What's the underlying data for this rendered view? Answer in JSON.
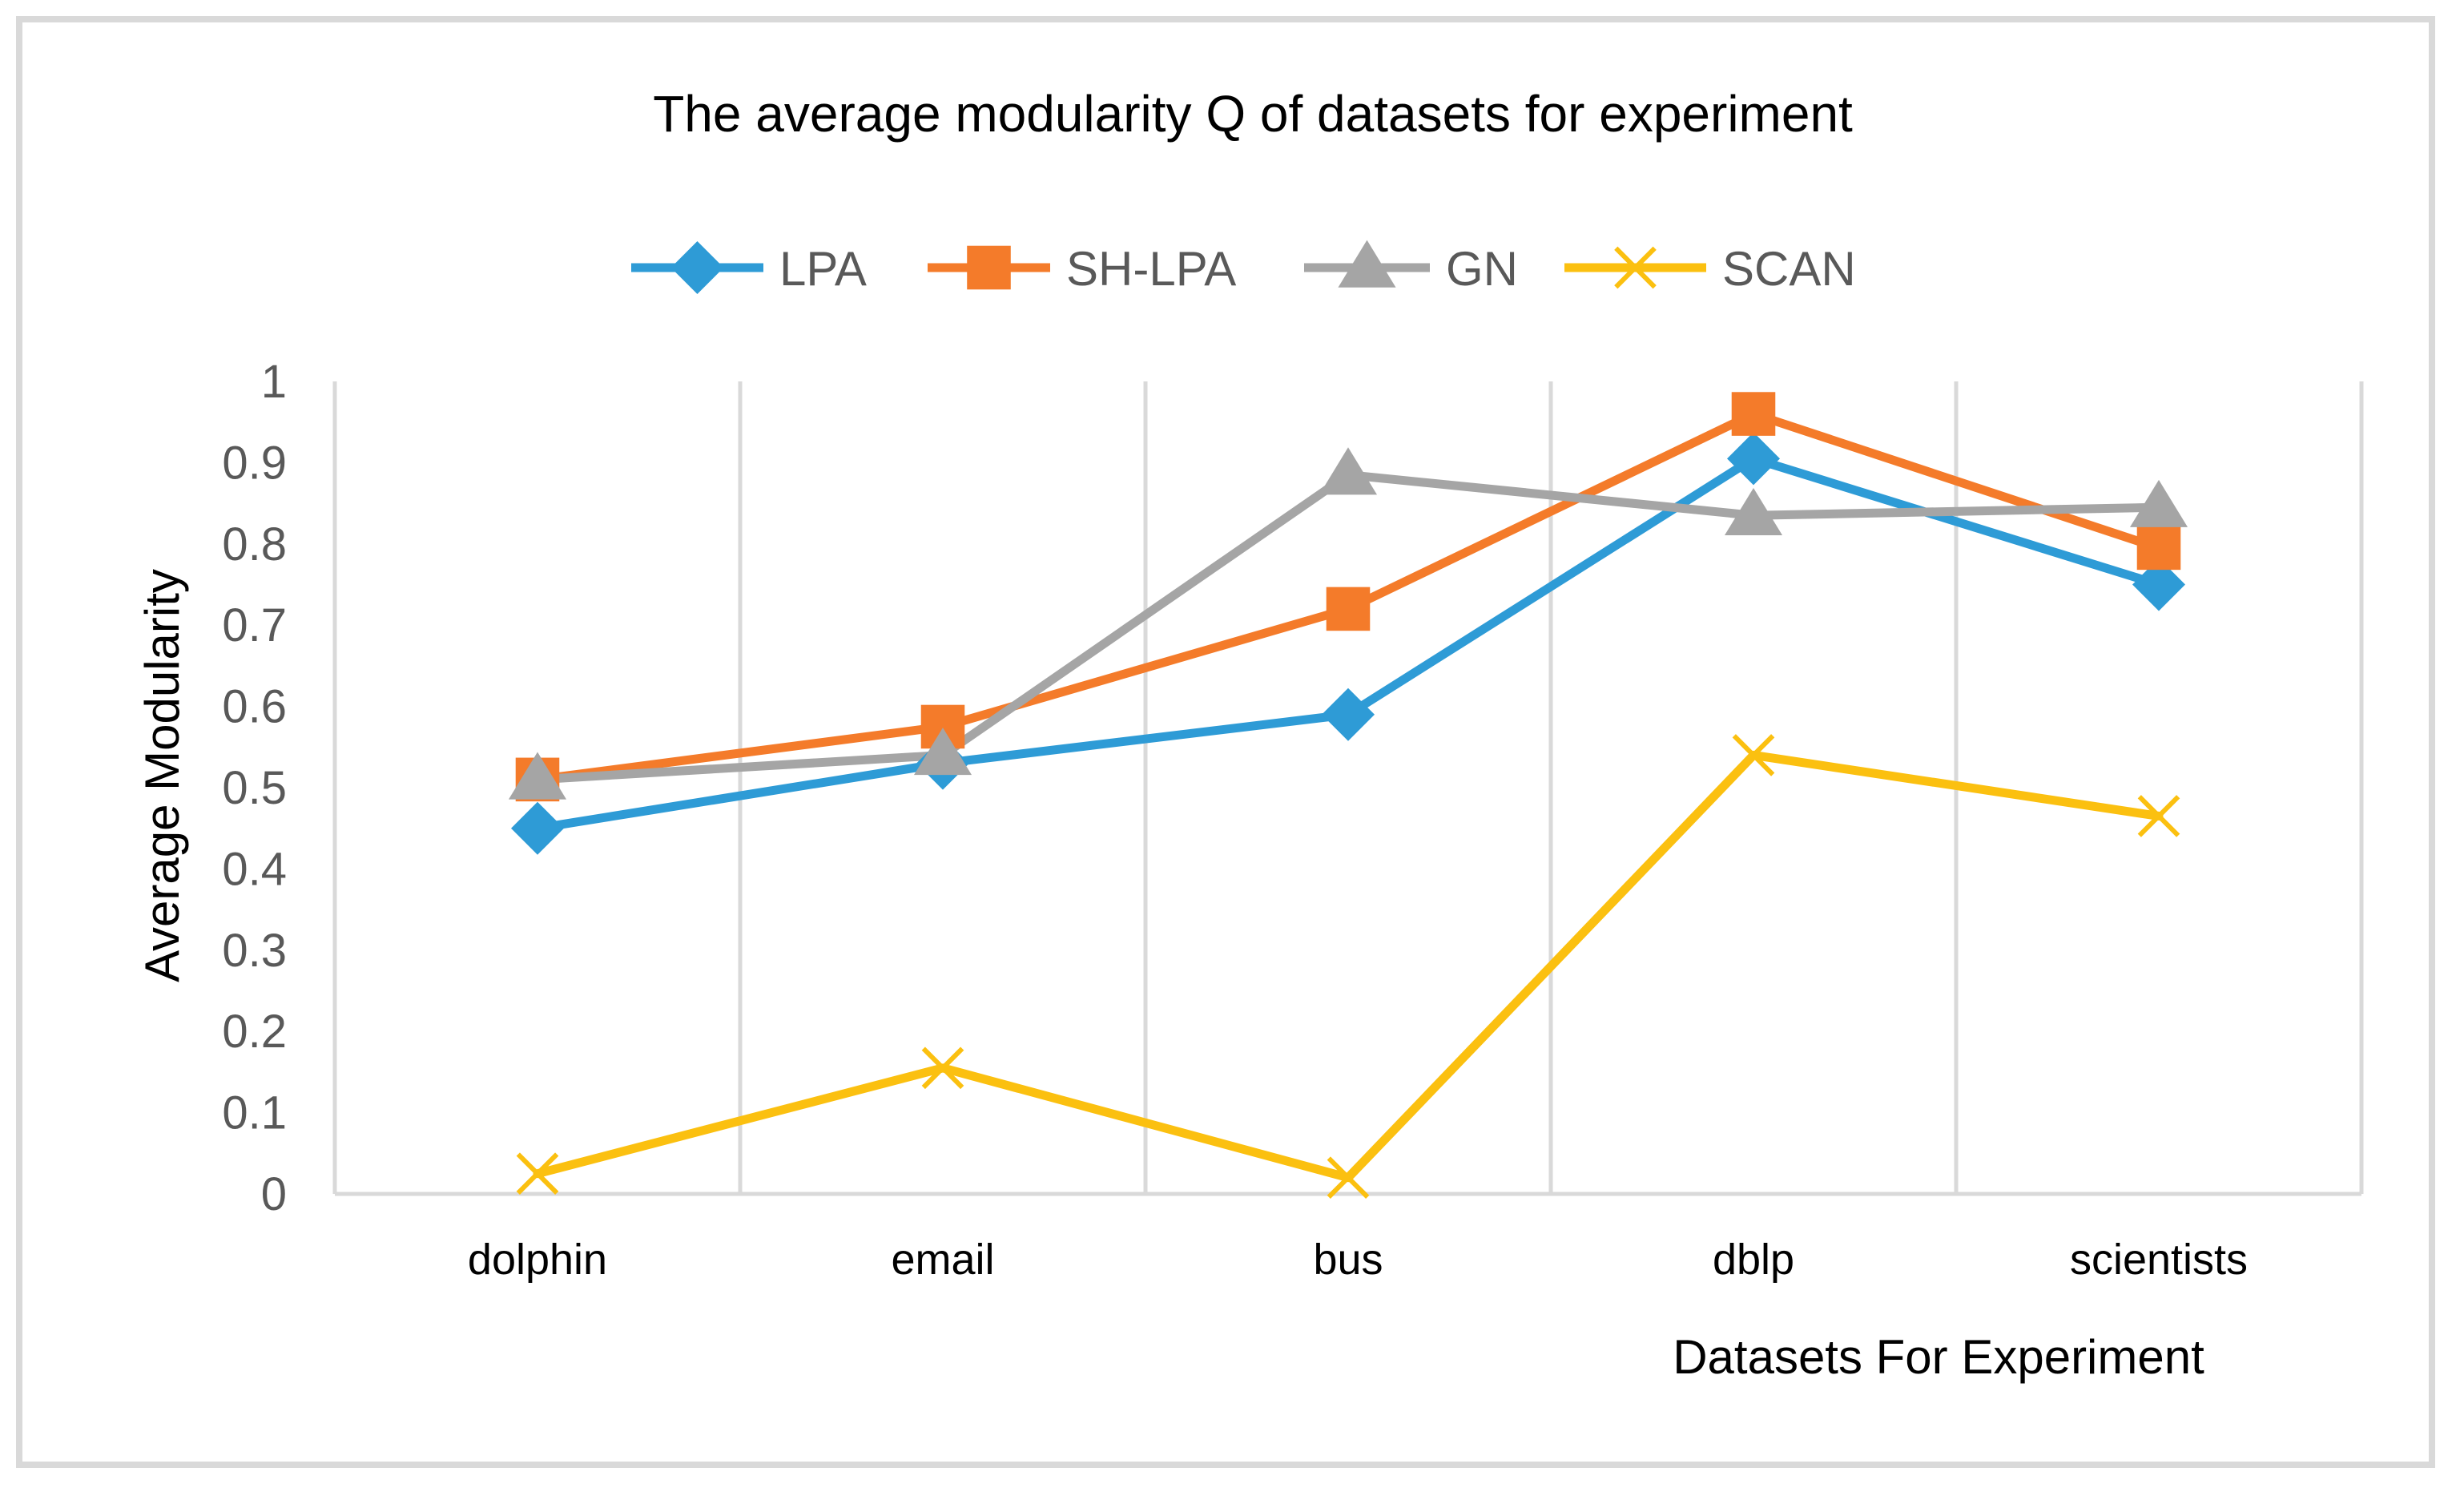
{
  "chart_data": {
    "type": "line",
    "title": "The average modularity Q of  datasets for experiment",
    "xlabel": "Datasets For Experiment",
    "ylabel": "Average Modularity",
    "categories": [
      "dolphin",
      "email",
      "bus",
      "dblp",
      "scientists"
    ],
    "ylim": [
      0,
      1
    ],
    "yticks": [
      0,
      0.1,
      0.2,
      0.3,
      0.4,
      0.5,
      0.6,
      0.7,
      0.8,
      0.9,
      1
    ],
    "ytick_labels": [
      "0",
      "0.1",
      "0.2",
      "0.3",
      "0.4",
      "0.5",
      "0.6",
      "0.7",
      "0.8",
      "0.9",
      "1"
    ],
    "grid": "vertical",
    "legend_position": "top",
    "series": [
      {
        "name": "LPA",
        "marker": "diamond",
        "color": "#2e9bd6",
        "values": [
          0.45,
          0.53,
          0.59,
          0.905,
          0.75
        ]
      },
      {
        "name": "SH-LPA",
        "marker": "square",
        "color": "#f47b2a",
        "values": [
          0.51,
          0.575,
          0.72,
          0.96,
          0.795
        ]
      },
      {
        "name": "GN",
        "marker": "triangle",
        "color": "#a5a5a5",
        "values": [
          0.51,
          0.54,
          0.885,
          0.835,
          0.845
        ]
      },
      {
        "name": "SCAN",
        "marker": "x",
        "color": "#fbc010",
        "values": [
          0.025,
          0.155,
          0.02,
          0.54,
          0.465
        ]
      }
    ]
  }
}
